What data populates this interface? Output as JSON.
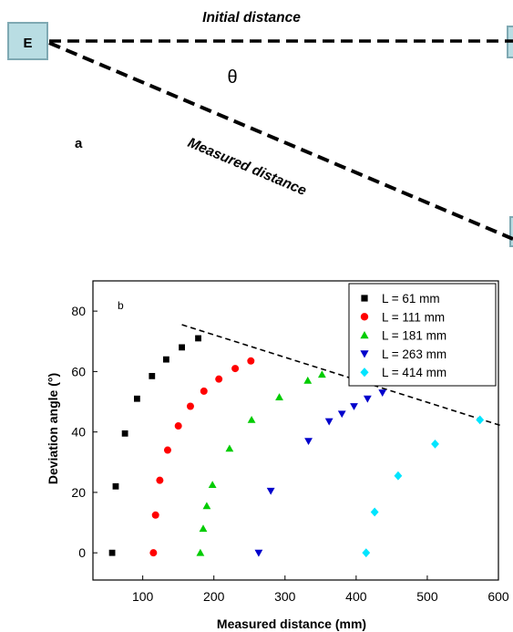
{
  "panel_a": {
    "label": "a",
    "box_left_label": "E",
    "initial_label": "Initial distance",
    "measured_label": "Measured distance",
    "angle_label": "θ",
    "colors": {
      "box_fill": "#b9dde3",
      "box_stroke": "#7fa9b3",
      "line": "#000000"
    }
  },
  "chart_data": {
    "type": "scatter",
    "panel_label": "b",
    "xlabel": "Measured distance (mm)",
    "ylabel": "Deviation angle (°)",
    "xlim": [
      30,
      600
    ],
    "ylim": [
      -9,
      90
    ],
    "xticks": [
      100,
      200,
      300,
      400,
      500,
      600
    ],
    "yticks": [
      0,
      20,
      40,
      60,
      80
    ],
    "grid": false,
    "legend_position": "top-right",
    "series": [
      {
        "name": "L = 61 mm",
        "marker": "square",
        "color": "#000000",
        "points": [
          [
            57,
            0
          ],
          [
            62,
            22
          ],
          [
            75,
            39.5
          ],
          [
            92,
            51
          ],
          [
            113,
            58.5
          ],
          [
            133,
            64
          ],
          [
            155,
            68
          ],
          [
            178,
            71
          ]
        ]
      },
      {
        "name": "L = 111 mm",
        "marker": "circle",
        "color": "#ff0000",
        "points": [
          [
            115,
            0
          ],
          [
            118,
            12.5
          ],
          [
            124,
            24
          ],
          [
            135,
            34
          ],
          [
            150,
            42
          ],
          [
            167,
            48.5
          ],
          [
            186,
            53.5
          ],
          [
            207,
            57.5
          ],
          [
            230,
            61
          ],
          [
            252,
            63.5
          ]
        ]
      },
      {
        "name": "L = 181 mm",
        "marker": "triangle-up",
        "color": "#00cc00",
        "points": [
          [
            181,
            0
          ],
          [
            185,
            8
          ],
          [
            190,
            15.5
          ],
          [
            198,
            22.5
          ],
          [
            222,
            34.5
          ],
          [
            253,
            44
          ],
          [
            292,
            51.5
          ],
          [
            332,
            57
          ],
          [
            352,
            59
          ]
        ]
      },
      {
        "name": "L = 263 mm",
        "marker": "triangle-down",
        "color": "#0000cc",
        "points": [
          [
            263,
            0
          ],
          [
            280,
            20.5
          ],
          [
            333,
            37
          ],
          [
            362,
            43.5
          ],
          [
            380,
            46
          ],
          [
            397,
            48.5
          ],
          [
            416,
            51
          ],
          [
            437,
            53
          ]
        ]
      },
      {
        "name": "L = 414 mm",
        "marker": "diamond",
        "color": "#00e5ff",
        "points": [
          [
            414,
            0
          ],
          [
            426,
            13.5
          ],
          [
            459,
            25.5
          ],
          [
            511,
            36
          ],
          [
            574,
            44
          ]
        ]
      }
    ],
    "trend_line": {
      "style": "dashed",
      "points": [
        [
          155,
          75.5
        ],
        [
          605,
          42
        ]
      ]
    }
  }
}
